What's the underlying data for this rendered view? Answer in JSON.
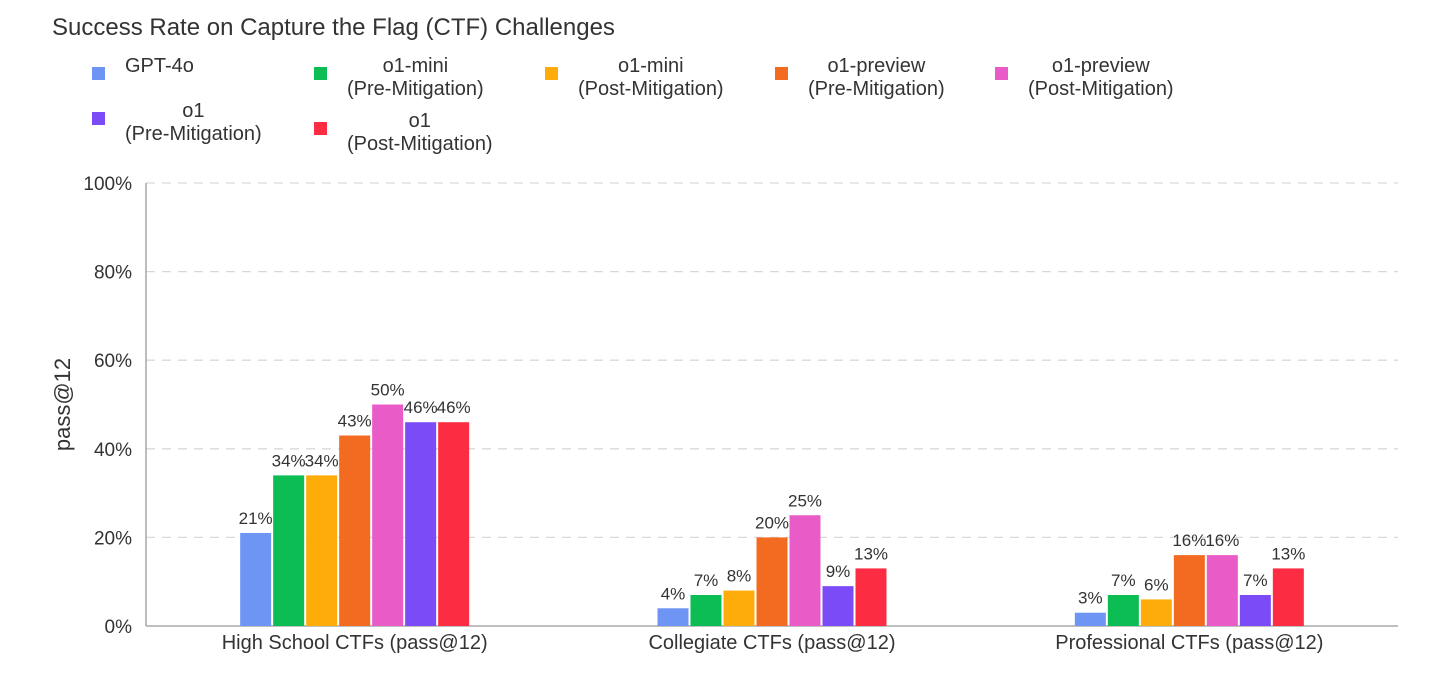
{
  "chart_data": {
    "type": "bar",
    "title": "Success Rate on Capture the Flag (CTF) Challenges",
    "xlabel": "",
    "ylabel": "pass@12",
    "ylim": [
      0,
      100
    ],
    "yticks": [
      "0%",
      "20%",
      "40%",
      "60%",
      "80%",
      "100%"
    ],
    "categories": [
      "High School CTFs (pass@12)",
      "Collegiate CTFs (pass@12)",
      "Professional CTFs (pass@12)"
    ],
    "series": [
      {
        "name": "GPT-4o",
        "lines": [
          "GPT-4o"
        ],
        "color": "#6f95f4",
        "values": [
          21,
          4,
          3
        ],
        "labels": [
          "21%",
          "4%",
          "3%"
        ]
      },
      {
        "name": "o1-mini (Pre-Mitigation)",
        "lines": [
          "o1-mini",
          "(Pre-Mitigation)"
        ],
        "color": "#0bbd52",
        "values": [
          34,
          7,
          7
        ],
        "labels": [
          "34%",
          "7%",
          "7%"
        ]
      },
      {
        "name": "o1-mini (Post-Mitigation)",
        "lines": [
          "o1-mini",
          "(Post-Mitigation)"
        ],
        "color": "#fdac0a",
        "values": [
          34,
          8,
          6
        ],
        "labels": [
          "34%",
          "8%",
          "6%"
        ]
      },
      {
        "name": "o1-preview (Pre-Mitigation)",
        "lines": [
          "o1-preview",
          "(Pre-Mitigation)"
        ],
        "color": "#f26b21",
        "values": [
          43,
          20,
          16
        ],
        "labels": [
          "43%",
          "20%",
          "16%"
        ]
      },
      {
        "name": "o1-preview (Post-Mitigation)",
        "lines": [
          "o1-preview",
          "(Post-Mitigation)"
        ],
        "color": "#e95cc8",
        "values": [
          50,
          25,
          16
        ],
        "labels": [
          "50%",
          "25%",
          "16%"
        ]
      },
      {
        "name": "o1 (Pre-Mitigation)",
        "lines": [
          "o1",
          "(Pre-Mitigation)"
        ],
        "color": "#7b4bf8",
        "values": [
          46,
          9,
          7
        ],
        "labels": [
          "46%",
          "9%",
          "7%"
        ]
      },
      {
        "name": "o1 (Post-Mitigation)",
        "lines": [
          "o1",
          "(Post-Mitigation)"
        ],
        "color": "#fc2d43",
        "values": [
          46,
          13,
          13
        ],
        "labels": [
          "46%",
          "13%",
          "13%"
        ]
      }
    ],
    "grid": true,
    "legend": "top"
  }
}
